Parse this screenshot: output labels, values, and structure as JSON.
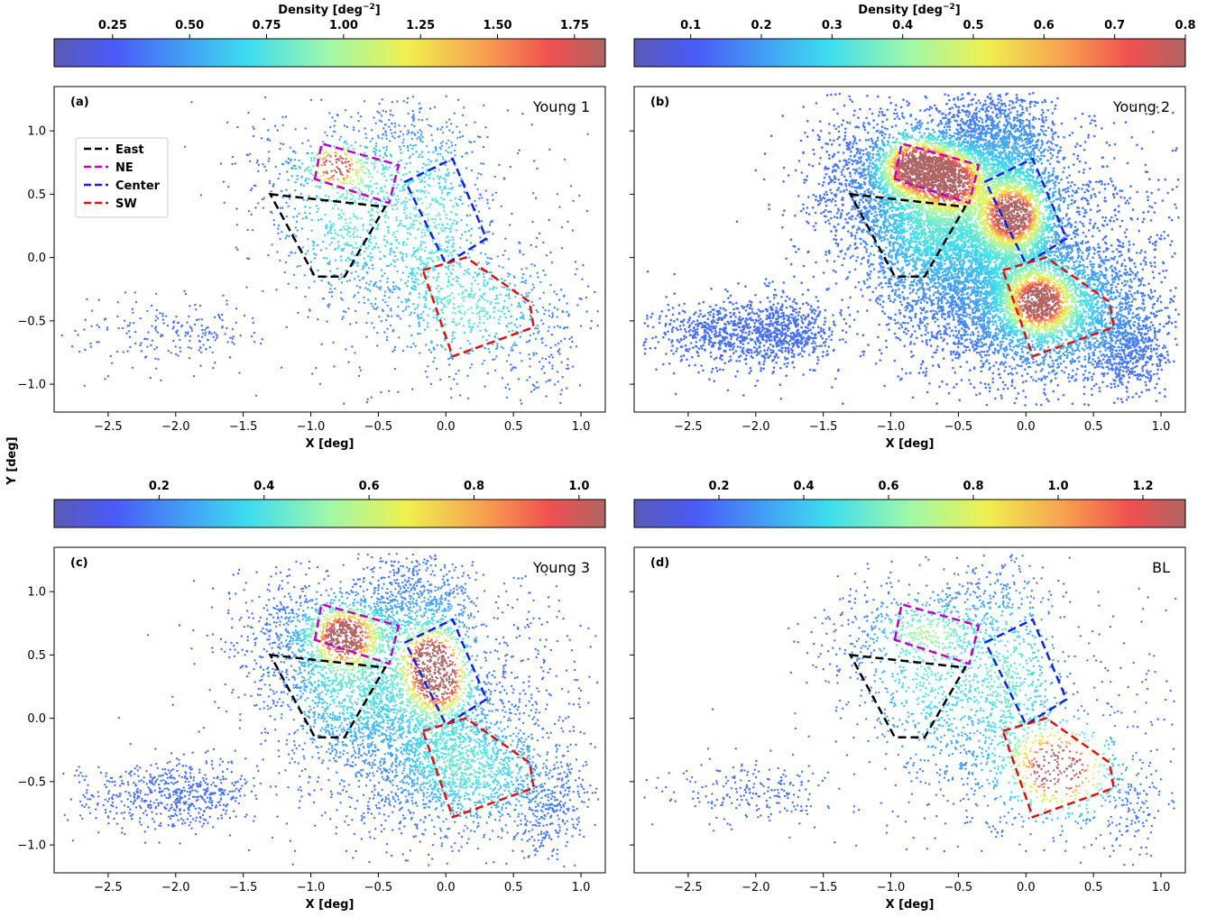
{
  "figure": {
    "ylabel": "Y [deg]"
  },
  "region_colors": {
    "East": "#000000",
    "NE": "#c000c0",
    "Center": "#1020e0",
    "SW": "#e01010"
  },
  "colormap": "jet (semi-transparent)",
  "chart_data": [
    {
      "type": "scatter",
      "panel": "(a)",
      "title": "Young 1",
      "xlabel": "X [deg]",
      "ylabel": "",
      "xlim": [
        -2.9,
        1.18
      ],
      "ylim": [
        -1.22,
        1.35
      ],
      "xticks": [
        "−2.5",
        "−2.0",
        "−1.5",
        "−1.0",
        "−0.5",
        "0.0",
        "0.5",
        "1.0"
      ],
      "yticks": [
        "1.0",
        "0.5",
        "0.0",
        "−0.5",
        "−1.0"
      ],
      "colorbar": {
        "label": "Density [deg$^{-2}$]",
        "range": [
          0.06,
          1.85
        ],
        "ticks": [
          "0.25",
          "0.50",
          "0.75",
          "1.00",
          "1.25",
          "1.50",
          "1.75"
        ]
      },
      "legend": {
        "position": "upper-left",
        "entries": [
          "East",
          "NE",
          "Center",
          "SW"
        ]
      },
      "points": 2600,
      "peaks": [
        {
          "x": -0.82,
          "y": 0.73,
          "level": "high"
        }
      ]
    },
    {
      "type": "scatter",
      "panel": "(b)",
      "title": "Young 2",
      "xlabel": "X [deg]",
      "ylabel": "",
      "xlim": [
        -2.9,
        1.18
      ],
      "ylim": [
        -1.22,
        1.35
      ],
      "xticks": [
        "−2.5",
        "−2.0",
        "−1.5",
        "−1.0",
        "−0.5",
        "0.0",
        "0.5",
        "1.0"
      ],
      "yticks": [],
      "colorbar": {
        "label": "Density [deg$^{-2}$]",
        "range": [
          0.02,
          0.8
        ],
        "ticks": [
          "0.1",
          "0.2",
          "0.3",
          "0.4",
          "0.5",
          "0.6",
          "0.7",
          "0.8"
        ]
      },
      "points": 14000,
      "peaks": [
        {
          "x": -0.82,
          "y": 0.72,
          "level": "high"
        },
        {
          "x": -0.55,
          "y": 0.6,
          "level": "high"
        },
        {
          "x": -0.1,
          "y": 0.33,
          "level": "high"
        },
        {
          "x": 0.1,
          "y": -0.35,
          "level": "high"
        }
      ]
    },
    {
      "type": "scatter",
      "panel": "(c)",
      "title": "Young 3",
      "xlabel": "X [deg]",
      "ylabel": "",
      "xlim": [
        -2.9,
        1.18
      ],
      "ylim": [
        -1.22,
        1.35
      ],
      "xticks": [
        "−2.5",
        "−2.0",
        "−1.5",
        "−1.0",
        "−0.5",
        "0.0",
        "0.5",
        "1.0"
      ],
      "yticks": [
        "1.0",
        "0.5",
        "0.0",
        "−0.5",
        "−1.0"
      ],
      "colorbar": {
        "label": "",
        "range": [
          0.0,
          1.05
        ],
        "ticks": [
          "0.2",
          "0.4",
          "0.6",
          "0.8",
          "1.0"
        ]
      },
      "points": 7000,
      "peaks": [
        {
          "x": -0.75,
          "y": 0.63,
          "level": "high"
        },
        {
          "x": -0.1,
          "y": 0.48,
          "level": "high"
        },
        {
          "x": -0.05,
          "y": 0.27,
          "level": "high"
        }
      ]
    },
    {
      "type": "scatter",
      "panel": "(d)",
      "title": "BL",
      "xlabel": "X [deg]",
      "ylabel": "",
      "xlim": [
        -2.9,
        1.18
      ],
      "ylim": [
        -1.22,
        1.35
      ],
      "xticks": [
        "−2.5",
        "−2.0",
        "−1.5",
        "−1.0",
        "−0.5",
        "0.0",
        "0.5",
        "1.0"
      ],
      "yticks": [],
      "colorbar": {
        "label": "",
        "range": [
          0.0,
          1.3
        ],
        "ticks": [
          "0.2",
          "0.4",
          "0.6",
          "0.8",
          "1.0",
          "1.2"
        ]
      },
      "points": 2700,
      "peaks": [
        {
          "x": 0.25,
          "y": -0.4,
          "level": "high"
        }
      ]
    }
  ],
  "regions": {
    "East": [
      [
        -1.3,
        0.5
      ],
      [
        -0.45,
        0.4
      ],
      [
        -0.75,
        -0.15
      ],
      [
        -0.97,
        -0.15
      ]
    ],
    "NE": [
      [
        -0.97,
        0.62
      ],
      [
        -0.92,
        0.9
      ],
      [
        -0.35,
        0.73
      ],
      [
        -0.42,
        0.43
      ]
    ],
    "Center": [
      [
        -0.3,
        0.6
      ],
      [
        0.05,
        0.78
      ],
      [
        0.3,
        0.15
      ],
      [
        0.0,
        -0.05
      ]
    ],
    "SW": [
      [
        -0.17,
        -0.1
      ],
      [
        0.15,
        0.0
      ],
      [
        0.62,
        -0.35
      ],
      [
        0.65,
        -0.55
      ],
      [
        0.05,
        -0.78
      ]
    ]
  }
}
